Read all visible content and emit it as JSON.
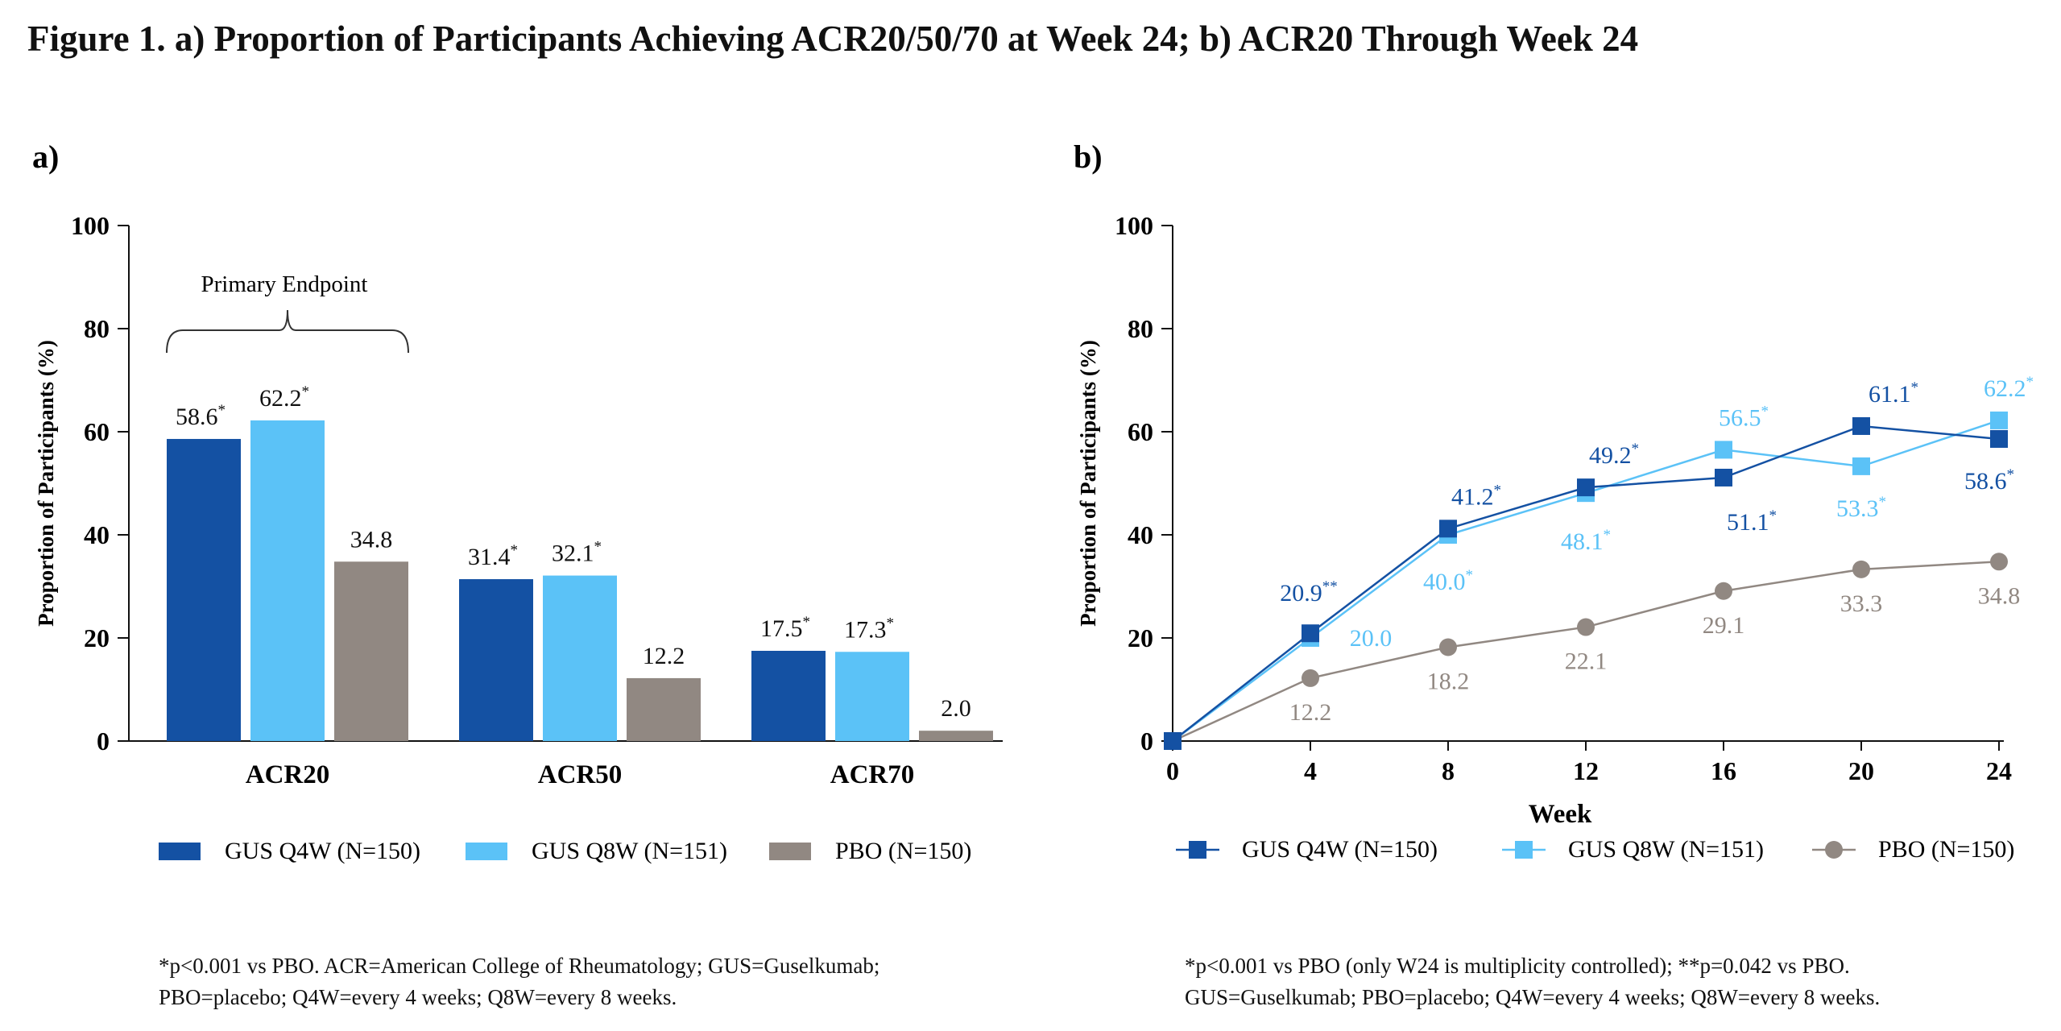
{
  "figure_title": "Figure 1. a) Proportion of Participants Achieving ACR20/50/70 at Week 24; b) ACR20 Through Week 24",
  "colors": {
    "gus_q4w": "#1451A3",
    "gus_q8w": "#5BC2F7",
    "pbo": "#918882",
    "axis": "#111111"
  },
  "chart_data": [
    {
      "panel_label": "a)",
      "type": "bar",
      "ylabel": "Proportion of Participants (%)",
      "ylim": [
        0,
        100
      ],
      "yticks": [
        0,
        20,
        40,
        60,
        80,
        100
      ],
      "categories": [
        "ACR20",
        "ACR50",
        "ACR70"
      ],
      "series": [
        {
          "name": "GUS Q4W (N=150)",
          "values": [
            58.6,
            31.4,
            17.5
          ],
          "labels": [
            "58.6",
            "31.4",
            "17.5"
          ],
          "marks": [
            "*",
            "*",
            "*"
          ]
        },
        {
          "name": "GUS Q8W (N=151)",
          "values": [
            62.2,
            32.1,
            17.3
          ],
          "labels": [
            "62.2",
            "32.1",
            "17.3"
          ],
          "marks": [
            "*",
            "*",
            "*"
          ]
        },
        {
          "name": "PBO (N=150)",
          "values": [
            34.8,
            12.2,
            2.0
          ],
          "labels": [
            "34.8",
            "12.2",
            "2.0"
          ],
          "marks": [
            "",
            "",
            ""
          ]
        }
      ],
      "annotation": "Primary Endpoint",
      "legend_position": "bottom",
      "footnote": [
        "*p<0.001 vs PBO. ACR=American College of Rheumatology; GUS=Guselkumab;",
        "PBO=placebo; Q4W=every 4 weeks; Q8W=every 8 weeks."
      ]
    },
    {
      "panel_label": "b)",
      "type": "line",
      "xlabel": "Week",
      "ylabel": "Proportion of Participants (%)",
      "ylim": [
        0,
        100
      ],
      "xlim": [
        0,
        24
      ],
      "yticks": [
        0,
        20,
        40,
        60,
        80,
        100
      ],
      "x": [
        0,
        4,
        8,
        12,
        16,
        20,
        24
      ],
      "series": [
        {
          "name": "GUS Q4W (N=150)",
          "marker": "square",
          "values": [
            0,
            20.9,
            41.2,
            49.2,
            51.1,
            61.1,
            58.6
          ],
          "labels": [
            "",
            "20.9",
            "41.2",
            "49.2",
            "51.1",
            "61.1",
            "58.6"
          ],
          "marks": [
            "",
            "**",
            "*",
            "*",
            "*",
            "*",
            "*"
          ]
        },
        {
          "name": "GUS Q8W (N=151)",
          "marker": "square",
          "values": [
            0,
            20.0,
            40.0,
            48.1,
            56.5,
            53.3,
            62.2
          ],
          "labels": [
            "",
            "20.0",
            "40.0",
            "48.1",
            "56.5",
            "53.3",
            "62.2"
          ],
          "marks": [
            "",
            "",
            "*",
            "*",
            "*",
            "*",
            "*"
          ]
        },
        {
          "name": "PBO (N=150)",
          "marker": "circle",
          "values": [
            0,
            12.2,
            18.2,
            22.1,
            29.1,
            33.3,
            34.8
          ],
          "labels": [
            "",
            "12.2",
            "18.2",
            "22.1",
            "29.1",
            "33.3",
            "34.8"
          ],
          "marks": [
            "",
            "",
            "",
            "",
            "",
            "",
            ""
          ]
        }
      ],
      "legend_position": "bottom",
      "footnote": [
        "*p<0.001 vs PBO (only W24 is multiplicity controlled); **p=0.042 vs PBO.",
        "GUS=Guselkumab; PBO=placebo; Q4W=every 4 weeks; Q8W=every 8 weeks."
      ]
    }
  ]
}
